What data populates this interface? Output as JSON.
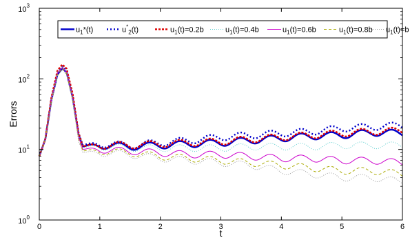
{
  "chart_data": {
    "type": "line",
    "xlabel": "t",
    "ylabel": "Errors",
    "xlim": [
      0,
      6
    ],
    "ylim": [
      1,
      1000
    ],
    "yscale": "log",
    "grid": false,
    "legend_position": "top",
    "x_ticks": [
      {
        "value": 0,
        "label": "0"
      },
      {
        "value": 1,
        "label": "1"
      },
      {
        "value": 2,
        "label": "2"
      },
      {
        "value": 3,
        "label": "3"
      },
      {
        "value": 4,
        "label": "4"
      },
      {
        "value": 5,
        "label": "5"
      },
      {
        "value": 6,
        "label": "6"
      }
    ],
    "y_ticks": [
      {
        "value": 1,
        "base": "10",
        "exp": "0"
      },
      {
        "value": 10,
        "base": "10",
        "exp": "1"
      },
      {
        "value": 100,
        "base": "10",
        "exp": "2"
      },
      {
        "value": 1000,
        "base": "10",
        "exp": "3"
      }
    ],
    "series": [
      {
        "name": "u1*(t)",
        "legend_parts": [
          {
            "t": "u"
          },
          {
            "t": "1",
            "sub": true
          },
          {
            "t": "*(t)"
          }
        ],
        "color": "#0000cc",
        "dash": "",
        "width": 2.5,
        "peak": 140,
        "trough": 11,
        "growth": 0.1,
        "points": [
          [
            0,
            8
          ],
          [
            0.1,
            14
          ],
          [
            0.2,
            50
          ],
          [
            0.3,
            115
          ],
          [
            0.38,
            140
          ],
          [
            0.45,
            125
          ],
          [
            0.55,
            55
          ],
          [
            0.65,
            16
          ],
          [
            0.72,
            11
          ],
          [
            1,
            11.5
          ],
          [
            1.5,
            11
          ],
          [
            2,
            11.5
          ],
          [
            2.5,
            12
          ],
          [
            3,
            12.5
          ],
          [
            3.5,
            13.5
          ],
          [
            4,
            14.5
          ],
          [
            4.5,
            15.5
          ],
          [
            5,
            16
          ],
          [
            5.5,
            17.5
          ],
          [
            6,
            17
          ]
        ]
      },
      {
        "name": "u2*(t)",
        "legend_parts": [
          {
            "t": "u"
          },
          {
            "t": "*",
            "sup": true
          },
          {
            "t": "2",
            "sub": true
          },
          {
            "t": "(t)"
          }
        ],
        "color": "#0000cc",
        "dash": "2,3",
        "width": 2.5,
        "peak": 150,
        "trough": 11.5,
        "growth": 0.14,
        "points": [
          [
            0,
            8
          ],
          [
            0.1,
            14
          ],
          [
            0.2,
            52
          ],
          [
            0.3,
            125
          ],
          [
            0.38,
            150
          ],
          [
            0.45,
            135
          ],
          [
            0.55,
            60
          ],
          [
            0.65,
            17
          ],
          [
            0.72,
            11.5
          ],
          [
            1,
            12
          ],
          [
            1.5,
            11.5
          ],
          [
            2,
            12.5
          ],
          [
            2.5,
            13.5
          ],
          [
            3,
            15
          ],
          [
            3.5,
            16
          ],
          [
            4,
            17
          ],
          [
            4.5,
            18
          ],
          [
            5,
            20
          ],
          [
            5.5,
            21
          ],
          [
            6,
            22
          ]
        ]
      },
      {
        "name": "u1(t)=0.2b",
        "legend_parts": [
          {
            "t": "u"
          },
          {
            "t": "1",
            "sub": true
          },
          {
            "t": "(t)=0.2b"
          }
        ],
        "color": "#dd0000",
        "dash": "3,2",
        "width": 2.5,
        "peak": 160,
        "trough": 11,
        "growth": 0.11,
        "points": [
          [
            0,
            8
          ],
          [
            0.1,
            14
          ],
          [
            0.2,
            54
          ],
          [
            0.3,
            130
          ],
          [
            0.38,
            160
          ],
          [
            0.45,
            140
          ],
          [
            0.55,
            62
          ],
          [
            0.65,
            17
          ],
          [
            0.72,
            11
          ],
          [
            1,
            11.5
          ],
          [
            1.5,
            11.5
          ],
          [
            2,
            12
          ],
          [
            2.5,
            12.5
          ],
          [
            3,
            13
          ],
          [
            3.5,
            14
          ],
          [
            4,
            15
          ],
          [
            4.5,
            16
          ],
          [
            5,
            17
          ],
          [
            5.5,
            18
          ],
          [
            6,
            18.5
          ]
        ]
      },
      {
        "name": "u1(t)=0.4b",
        "legend_parts": [
          {
            "t": "u"
          },
          {
            "t": "1",
            "sub": true
          },
          {
            "t": "(t)=0.4b"
          }
        ],
        "color": "#55cccc",
        "dash": "1,2",
        "width": 1,
        "peak": 150,
        "trough": 10.5,
        "growth": 0.02,
        "points": [
          [
            0,
            8
          ],
          [
            0.1,
            14
          ],
          [
            0.2,
            52
          ],
          [
            0.3,
            125
          ],
          [
            0.38,
            150
          ],
          [
            0.45,
            130
          ],
          [
            0.55,
            58
          ],
          [
            0.65,
            16
          ],
          [
            0.72,
            10.5
          ],
          [
            1,
            11
          ],
          [
            1.5,
            10.5
          ],
          [
            2,
            10.5
          ],
          [
            2.5,
            10.5
          ],
          [
            3,
            10.5
          ],
          [
            3.5,
            11
          ],
          [
            4,
            11
          ],
          [
            4.5,
            11
          ],
          [
            5,
            11.5
          ],
          [
            5.5,
            11.5
          ],
          [
            6,
            11.5
          ]
        ]
      },
      {
        "name": "u1(t)=0.6b",
        "legend_parts": [
          {
            "t": "u"
          },
          {
            "t": "1",
            "sub": true
          },
          {
            "t": "(t)=0.6b"
          }
        ],
        "color": "#cc00cc",
        "dash": "",
        "width": 1,
        "peak": 145,
        "trough": 10,
        "growth": -0.05,
        "points": [
          [
            0,
            8
          ],
          [
            0.1,
            14
          ],
          [
            0.2,
            50
          ],
          [
            0.3,
            120
          ],
          [
            0.38,
            145
          ],
          [
            0.45,
            125
          ],
          [
            0.55,
            55
          ],
          [
            0.65,
            15
          ],
          [
            0.72,
            10
          ],
          [
            1,
            10
          ],
          [
            1.5,
            9.5
          ],
          [
            2,
            9
          ],
          [
            2.5,
            8.5
          ],
          [
            3,
            8.5
          ],
          [
            3.5,
            8
          ],
          [
            4,
            7.5
          ],
          [
            4.5,
            7.5
          ],
          [
            5,
            7
          ],
          [
            5.5,
            7
          ],
          [
            6,
            6.5
          ]
        ]
      },
      {
        "name": "u1(t)=0.8b",
        "legend_parts": [
          {
            "t": "u"
          },
          {
            "t": "1",
            "sub": true
          },
          {
            "t": "(t)=0.8b"
          }
        ],
        "color": "#aaaa00",
        "dash": "4,3",
        "width": 1,
        "peak": 140,
        "trough": 9.5,
        "growth": -0.09,
        "points": [
          [
            0,
            8
          ],
          [
            0.1,
            14
          ],
          [
            0.2,
            48
          ],
          [
            0.3,
            115
          ],
          [
            0.38,
            140
          ],
          [
            0.45,
            120
          ],
          [
            0.55,
            52
          ],
          [
            0.65,
            14
          ],
          [
            0.72,
            9.5
          ],
          [
            1,
            9.5
          ],
          [
            1.5,
            9
          ],
          [
            2,
            8
          ],
          [
            2.5,
            7.5
          ],
          [
            3,
            7
          ],
          [
            3.5,
            6.5
          ],
          [
            4,
            6
          ],
          [
            4.5,
            5.5
          ],
          [
            5,
            5
          ],
          [
            5.5,
            5
          ],
          [
            6,
            4.5
          ]
        ]
      },
      {
        "name": "u1(t)=b",
        "legend_parts": [
          {
            "t": "u"
          },
          {
            "t": "1",
            "sub": true
          },
          {
            "t": "(t)=b"
          }
        ],
        "color": "#999999",
        "dash": "1,2",
        "width": 1,
        "peak": 135,
        "trough": 9,
        "growth": -0.12,
        "points": [
          [
            0,
            8
          ],
          [
            0.1,
            14
          ],
          [
            0.2,
            46
          ],
          [
            0.3,
            110
          ],
          [
            0.38,
            135
          ],
          [
            0.45,
            115
          ],
          [
            0.55,
            50
          ],
          [
            0.65,
            13
          ],
          [
            0.72,
            9
          ],
          [
            1,
            9
          ],
          [
            1.5,
            8.5
          ],
          [
            2,
            7.5
          ],
          [
            2.5,
            7
          ],
          [
            3,
            6.5
          ],
          [
            3.5,
            6
          ],
          [
            4,
            5
          ],
          [
            4.5,
            4.5
          ],
          [
            5,
            4
          ],
          [
            5.5,
            4
          ],
          [
            6,
            3.5
          ]
        ]
      }
    ]
  }
}
